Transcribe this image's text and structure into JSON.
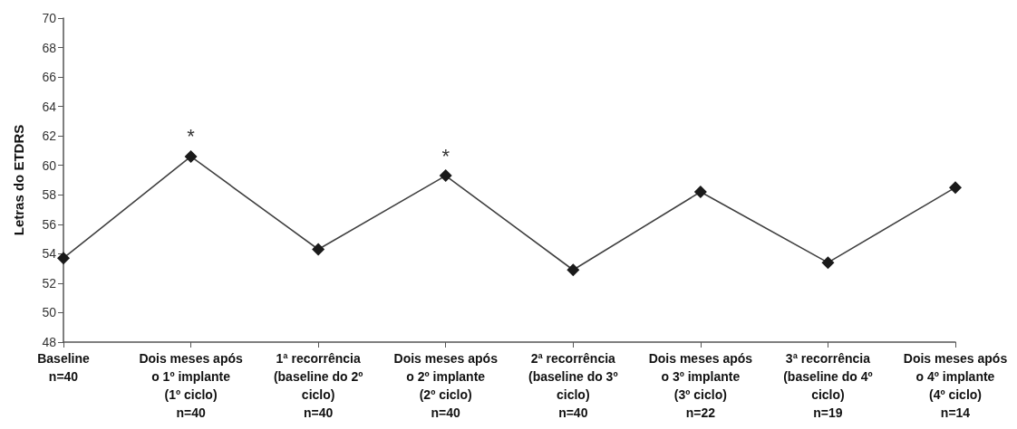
{
  "chart_data": {
    "type": "line",
    "ylabel": "Letras do ETDRS",
    "categories": [
      "Baseline\nn=40",
      "Dois meses após\no 1º implante\n(1º ciclo)\nn=40",
      "1ª recorrência\n(baseline do 2º\nciclo)\nn=40",
      "Dois meses após\no 2º implante\n(2º ciclo)\nn=40",
      "2ª recorrência\n(baseline do 3º\nciclo)\nn=40",
      "Dois meses após\no 3º implante\n(3º ciclo)\nn=22",
      "3ª recorrência\n(baseline do 4º\nciclo)\nn=19",
      "Dois meses após\no 4º implante\n(4º ciclo)\nn=14"
    ],
    "series": [
      {
        "color": "#1a1a1a",
        "values": [
          53.7,
          60.6,
          54.3,
          59.3,
          52.9,
          58.2,
          53.4,
          58.5
        ]
      }
    ],
    "ylim": [
      48,
      70
    ],
    "yticks": [
      48,
      50,
      52,
      54,
      56,
      58,
      60,
      62,
      64,
      66,
      68,
      70
    ],
    "marker": "diamond",
    "line_style": "solid",
    "annotations": [
      {
        "text": "*",
        "x": "Dois meses após\no 1º implante\n(1º ciclo)\nn=40",
        "y": 60.6
      },
      {
        "text": "*",
        "x": "Dois meses após\no 2º implante\n(2º ciclo)\nn=40",
        "y": 59.3
      }
    ]
  }
}
